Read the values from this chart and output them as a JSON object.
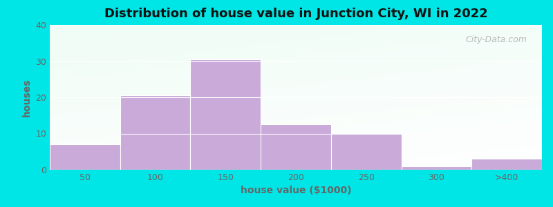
{
  "title": "Distribution of house value in Junction City, WI in 2022",
  "xlabel": "house value ($1000)",
  "ylabel": "houses",
  "bar_labels": [
    "50",
    "100",
    "150",
    "200",
    "250",
    "300",
    ">400"
  ],
  "bar_values": [
    7,
    20.5,
    30.5,
    12.5,
    10,
    1,
    3
  ],
  "bar_color": "#c9aad9",
  "background_outer": "#00e5e5",
  "background_plot": "#e8f2e0",
  "ylim": [
    0,
    40
  ],
  "yticks": [
    0,
    10,
    20,
    30,
    40
  ],
  "title_fontsize": 13,
  "axis_label_fontsize": 10,
  "tick_fontsize": 9,
  "watermark_text": "City-Data.com",
  "tick_color": "#666666",
  "label_color": "#666666",
  "title_color": "#111111"
}
